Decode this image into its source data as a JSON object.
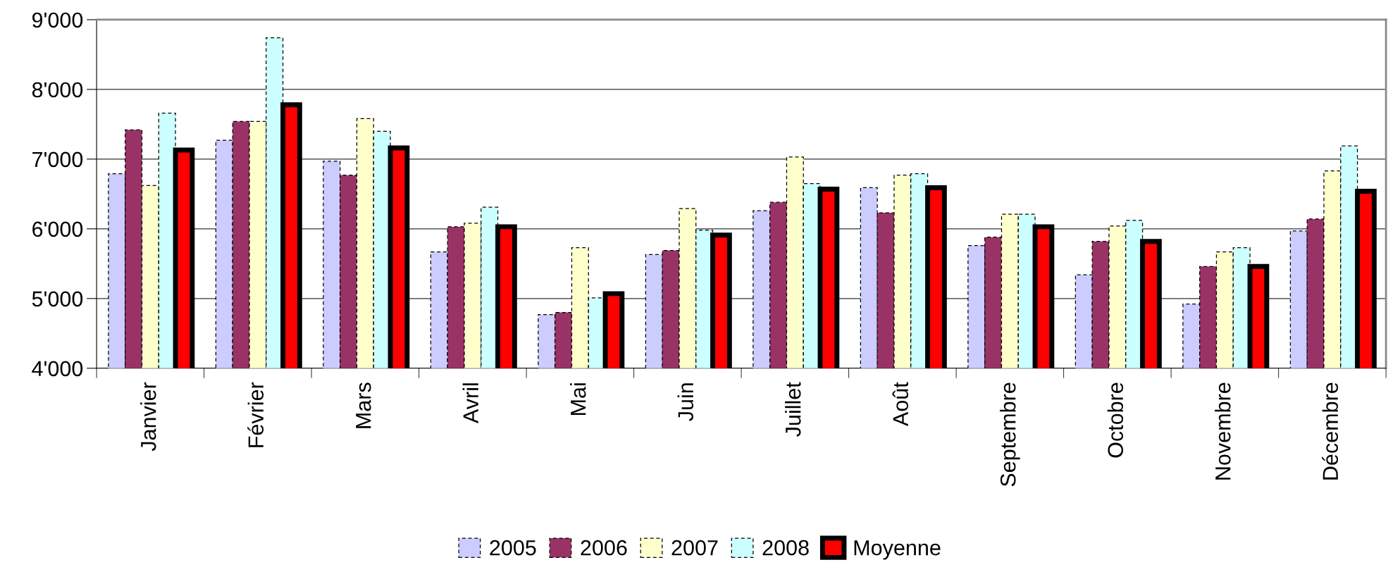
{
  "chart_data": {
    "type": "bar",
    "categories": [
      "Janvier",
      "Février",
      "Mars",
      "Avril",
      "Mai",
      "Juin",
      "Juillet",
      "Août",
      "Septembre",
      "Octobre",
      "Novembre",
      "Décembre"
    ],
    "series": [
      {
        "name": "2005",
        "color": "#ccccff",
        "values": [
          6790,
          7270,
          6970,
          5670,
          4770,
          5630,
          6260,
          6590,
          5760,
          5340,
          4920,
          5970
        ]
      },
      {
        "name": "2006",
        "color": "#993366",
        "values": [
          7420,
          7540,
          6770,
          6030,
          4800,
          5690,
          6380,
          6230,
          5880,
          5820,
          5460,
          6140
        ]
      },
      {
        "name": "2007",
        "color": "#ffffcc",
        "values": [
          6620,
          7540,
          7580,
          6080,
          5730,
          6290,
          7030,
          6770,
          6210,
          6040,
          5670,
          6830
        ]
      },
      {
        "name": "2008",
        "color": "#ccffff",
        "values": [
          7660,
          8740,
          7400,
          6310,
          5010,
          5980,
          6650,
          6790,
          6210,
          6120,
          5730,
          7190
        ]
      },
      {
        "name": "Moyenne",
        "color": "#ff0000",
        "values": [
          7130,
          7780,
          7160,
          6030,
          5070,
          5910,
          6570,
          6590,
          6030,
          5820,
          5460,
          6540
        ]
      }
    ],
    "ylim": [
      4000,
      9000
    ],
    "yticks": [
      {
        "value": 4000,
        "label": "4'000"
      },
      {
        "value": 5000,
        "label": "5'000"
      },
      {
        "value": 6000,
        "label": "6'000"
      },
      {
        "value": 7000,
        "label": "7'000"
      },
      {
        "value": 8000,
        "label": "8'000"
      },
      {
        "value": 9000,
        "label": "9'000"
      }
    ],
    "grid": "y",
    "legend": "bottom"
  }
}
